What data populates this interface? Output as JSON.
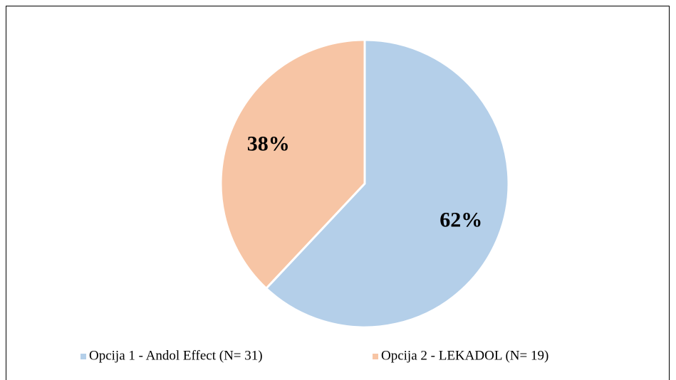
{
  "chart_data": {
    "type": "pie",
    "categories": [
      "Opcija 1 - Andol Effect (N= 31)",
      "Opcija 2 - LEKADOL (N= 19)"
    ],
    "values": [
      62,
      38
    ],
    "value_labels": [
      "62%",
      "38%"
    ],
    "colors": [
      "#b4cfe9",
      "#f7c5a5"
    ],
    "legend": "bottom"
  }
}
